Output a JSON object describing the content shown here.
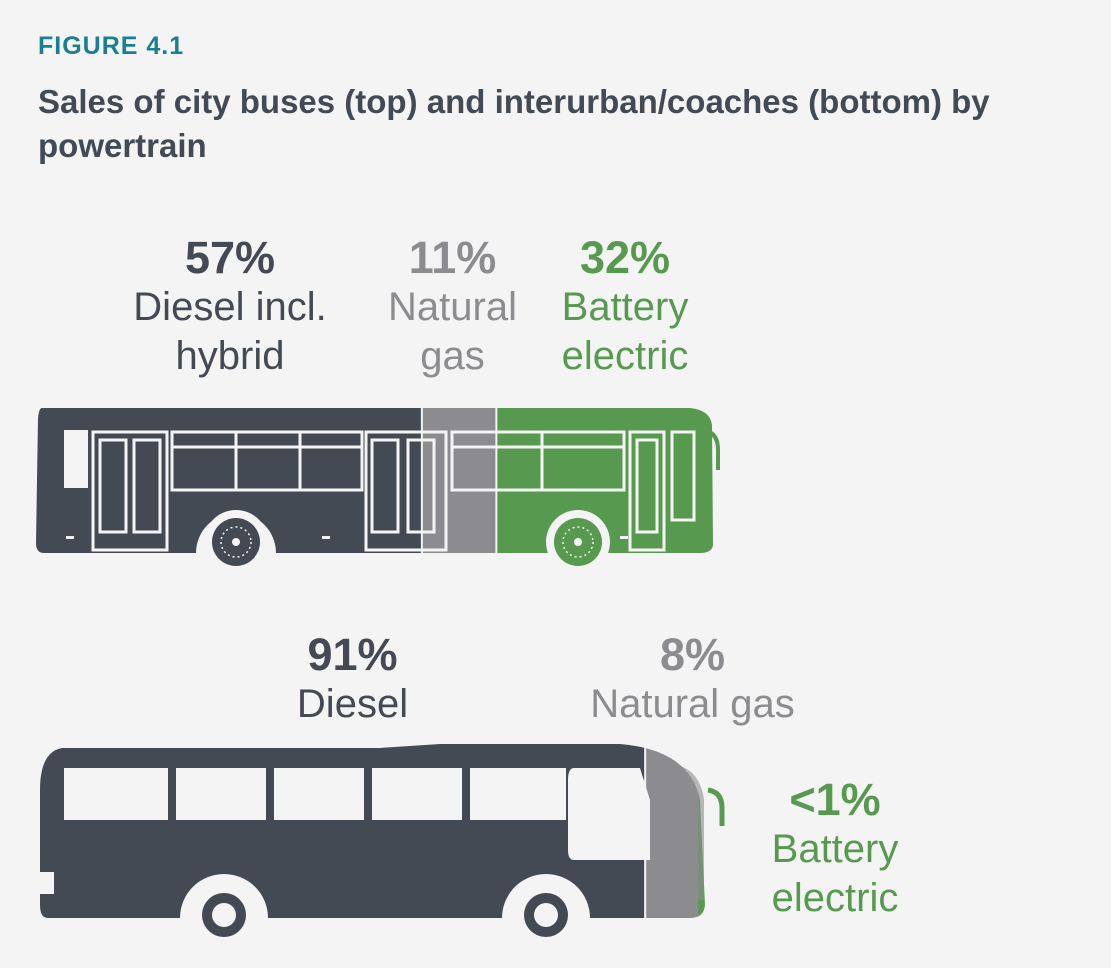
{
  "figure_label": "FIGURE 4.1",
  "title": "Sales of city buses (top) and interurban/coaches (bottom) by powertrain",
  "colors": {
    "diesel": "#434a53",
    "natural_gas": "#8c8c90",
    "battery_electric": "#579a4f",
    "background": "#f4f4f4",
    "label_accent": "#1a7f8e"
  },
  "chart_data": [
    {
      "type": "bar",
      "panel": "city buses (top)",
      "categories": [
        "Diesel incl. hybrid",
        "Natural gas",
        "Battery electric"
      ],
      "values": [
        57,
        11,
        32
      ],
      "value_labels": [
        "57%",
        "11%",
        "32%"
      ],
      "unit": "%"
    },
    {
      "type": "bar",
      "panel": "interurban/coaches (bottom)",
      "categories": [
        "Diesel",
        "Natural gas",
        "Battery electric"
      ],
      "values": [
        91,
        8,
        1
      ],
      "value_labels": [
        "91%",
        "8%",
        "<1%"
      ],
      "unit": "%"
    }
  ],
  "labels": {
    "city": [
      {
        "pct": "57%",
        "name": "Diesel incl.\nhybrid"
      },
      {
        "pct": "11%",
        "name": "Natural\ngas"
      },
      {
        "pct": "32%",
        "name": "Battery\nelectric"
      }
    ],
    "coach": [
      {
        "pct": "91%",
        "name": "Diesel"
      },
      {
        "pct": "8%",
        "name": "Natural gas"
      },
      {
        "pct": "<1%",
        "name": "Battery\nelectric"
      }
    ]
  }
}
